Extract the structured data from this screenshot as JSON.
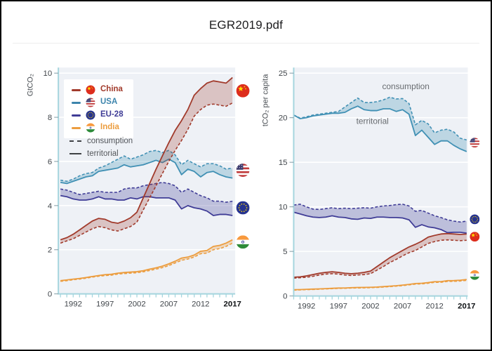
{
  "header": {
    "title": "EGR2019.pdf"
  },
  "colors": {
    "china": "#a13a2b",
    "usa": "#4090b4",
    "eu28": "#3f3c96",
    "india": "#ec9d3f",
    "axis": "#a5d5de",
    "plot_bg": "#eef1f6",
    "grid": "#ffffff",
    "tick_text": "#41464b",
    "bold_tick_text": "#101316",
    "annotation_text": "#686c70"
  },
  "legend": {
    "items": [
      {
        "id": "china",
        "label": "China",
        "color": "#a13a2b",
        "flag": "china"
      },
      {
        "id": "usa",
        "label": "USA",
        "color": "#3c84ac",
        "flag": "usa"
      },
      {
        "id": "eu28",
        "label": "EU-28",
        "color": "#3f3c96",
        "flag": "eu"
      },
      {
        "id": "india",
        "label": "India",
        "color": "#ec9d3f",
        "flag": "india"
      }
    ],
    "consumption_label": "consumption",
    "territorial_label": "territorial"
  },
  "chart_data": [
    {
      "type": "area",
      "title": "",
      "xlabel": "",
      "ylabel": "GtCO₂",
      "ylim": [
        0,
        10
      ],
      "yticks": [
        0,
        2,
        4,
        6,
        8,
        10
      ],
      "x_start": 1990,
      "x_end": 2017,
      "xtick_labels": [
        1992,
        1997,
        2002,
        2007,
        2012,
        2017
      ],
      "bold_xtick": 2017,
      "grid": true,
      "legend_position": "upper-left",
      "series": [
        {
          "country": "USA",
          "id": "usa",
          "color": "#4090b4",
          "fill_opacity": 0.28,
          "flag": "usa",
          "flag_value": 5.6,
          "territorial": [
            5.05,
            5.0,
            5.1,
            5.2,
            5.3,
            5.35,
            5.55,
            5.6,
            5.65,
            5.7,
            5.85,
            5.75,
            5.8,
            5.85,
            5.95,
            6.05,
            5.95,
            6.1,
            5.95,
            5.4,
            5.65,
            5.55,
            5.3,
            5.5,
            5.55,
            5.4,
            5.3,
            5.25
          ],
          "consumption": [
            5.15,
            5.1,
            5.2,
            5.35,
            5.45,
            5.5,
            5.7,
            5.8,
            5.95,
            6.1,
            6.25,
            6.1,
            6.2,
            6.3,
            6.45,
            6.5,
            6.4,
            6.5,
            6.3,
            5.85,
            6.05,
            5.9,
            5.75,
            5.9,
            5.9,
            5.8,
            5.65,
            5.7
          ]
        },
        {
          "country": "EU-28",
          "id": "eu28",
          "color": "#3f3c96",
          "fill_opacity": 0.28,
          "flag": "eu",
          "flag_value": 3.9,
          "territorial": [
            4.45,
            4.4,
            4.3,
            4.25,
            4.25,
            4.3,
            4.4,
            4.3,
            4.3,
            4.25,
            4.25,
            4.35,
            4.3,
            4.4,
            4.4,
            4.35,
            4.35,
            4.35,
            4.25,
            3.85,
            4.0,
            3.9,
            3.85,
            3.75,
            3.55,
            3.6,
            3.6,
            3.55
          ],
          "consumption": [
            4.75,
            4.7,
            4.6,
            4.5,
            4.55,
            4.6,
            4.65,
            4.6,
            4.6,
            4.6,
            4.75,
            4.8,
            4.8,
            4.9,
            4.95,
            5.0,
            5.05,
            5.0,
            4.9,
            4.6,
            4.75,
            4.6,
            4.45,
            4.35,
            4.2,
            4.2,
            4.15,
            4.2
          ]
        },
        {
          "country": "India",
          "id": "india",
          "color": "#ec9d3f",
          "fill_opacity": 0.3,
          "flag": "india",
          "flag_value": 2.35,
          "territorial": [
            0.6,
            0.63,
            0.67,
            0.7,
            0.74,
            0.79,
            0.83,
            0.87,
            0.89,
            0.94,
            0.97,
            0.99,
            1.01,
            1.05,
            1.12,
            1.18,
            1.26,
            1.36,
            1.48,
            1.62,
            1.67,
            1.76,
            1.93,
            1.97,
            2.15,
            2.2,
            2.3,
            2.45
          ],
          "consumption": [
            0.57,
            0.6,
            0.64,
            0.67,
            0.71,
            0.76,
            0.8,
            0.83,
            0.85,
            0.9,
            0.92,
            0.94,
            0.96,
            1.0,
            1.06,
            1.12,
            1.19,
            1.28,
            1.4,
            1.52,
            1.58,
            1.67,
            1.82,
            1.85,
            2.0,
            2.05,
            2.15,
            2.3
          ]
        },
        {
          "country": "China",
          "id": "china",
          "color": "#a13a2b",
          "fill_opacity": 0.25,
          "flag": "china",
          "flag_value": 9.2,
          "territorial": [
            2.45,
            2.55,
            2.7,
            2.9,
            3.1,
            3.3,
            3.42,
            3.38,
            3.25,
            3.2,
            3.3,
            3.45,
            3.7,
            4.35,
            5.0,
            5.65,
            6.25,
            6.85,
            7.4,
            7.85,
            8.35,
            9.0,
            9.3,
            9.55,
            9.65,
            9.6,
            9.55,
            9.8
          ],
          "consumption": [
            2.3,
            2.4,
            2.5,
            2.65,
            2.8,
            2.95,
            3.05,
            3.0,
            2.9,
            2.85,
            2.95,
            3.05,
            3.25,
            3.8,
            4.35,
            4.9,
            5.45,
            6.0,
            6.5,
            6.95,
            7.45,
            8.05,
            8.35,
            8.55,
            8.6,
            8.55,
            8.5,
            8.65
          ]
        }
      ],
      "annotations": []
    },
    {
      "type": "area",
      "title": "",
      "xlabel": "",
      "ylabel": "tCO₂ per capita",
      "ylim": [
        0,
        25
      ],
      "yticks": [
        0,
        5,
        10,
        15,
        20,
        25
      ],
      "x_start": 1990,
      "x_end": 2017,
      "xtick_labels": [
        1992,
        1997,
        2002,
        2007,
        2012,
        2017
      ],
      "bold_xtick": 2017,
      "grid": true,
      "series": [
        {
          "country": "USA",
          "id": "usa",
          "color": "#4090b4",
          "fill_opacity": 0.28,
          "flag": "usa",
          "flag_value": 17.2,
          "territorial": [
            20.3,
            19.9,
            20.0,
            20.2,
            20.3,
            20.4,
            20.5,
            20.5,
            20.6,
            21.0,
            21.3,
            20.9,
            20.8,
            20.8,
            21.0,
            21.0,
            20.7,
            20.9,
            20.4,
            18.0,
            18.6,
            17.8,
            17.0,
            17.4,
            17.4,
            16.9,
            16.5,
            16.2
          ],
          "consumption": [
            20.3,
            19.95,
            20.1,
            20.3,
            20.4,
            20.5,
            20.6,
            20.7,
            21.2,
            21.7,
            22.2,
            21.7,
            21.7,
            21.8,
            22.0,
            22.3,
            22.1,
            22.15,
            21.6,
            19.2,
            19.7,
            19.3,
            18.3,
            18.6,
            18.7,
            18.4,
            17.7,
            17.5
          ]
        },
        {
          "country": "EU-28",
          "id": "eu28",
          "color": "#3f3c96",
          "fill_opacity": 0.28,
          "flag": "eu",
          "flag_value": 8.6,
          "territorial": [
            9.4,
            9.2,
            9.0,
            8.85,
            8.8,
            8.85,
            9.0,
            8.85,
            8.8,
            8.65,
            8.6,
            8.75,
            8.7,
            8.85,
            8.85,
            8.8,
            8.8,
            8.75,
            8.55,
            7.7,
            8.0,
            7.75,
            7.65,
            7.45,
            7.1,
            7.15,
            7.15,
            7.05
          ],
          "consumption": [
            10.2,
            10.3,
            10.0,
            9.75,
            9.7,
            9.8,
            9.9,
            9.8,
            9.85,
            9.8,
            9.85,
            9.9,
            9.85,
            10.0,
            10.1,
            10.15,
            10.25,
            10.3,
            10.1,
            9.5,
            9.6,
            9.3,
            9.0,
            8.8,
            8.55,
            8.4,
            8.3,
            8.4
          ]
        },
        {
          "country": "India",
          "id": "india",
          "color": "#ec9d3f",
          "fill_opacity": 0.3,
          "flag": "india",
          "flag_value": 2.35,
          "territorial": [
            0.7,
            0.72,
            0.75,
            0.77,
            0.8,
            0.83,
            0.86,
            0.89,
            0.9,
            0.93,
            0.95,
            0.96,
            0.98,
            1.0,
            1.05,
            1.1,
            1.15,
            1.22,
            1.3,
            1.4,
            1.43,
            1.5,
            1.6,
            1.62,
            1.72,
            1.73,
            1.77,
            1.85
          ],
          "consumption": [
            0.66,
            0.68,
            0.71,
            0.73,
            0.76,
            0.79,
            0.82,
            0.85,
            0.86,
            0.89,
            0.9,
            0.91,
            0.93,
            0.95,
            1.0,
            1.05,
            1.1,
            1.16,
            1.24,
            1.33,
            1.36,
            1.43,
            1.52,
            1.54,
            1.63,
            1.64,
            1.68,
            1.75
          ]
        },
        {
          "country": "China",
          "id": "china",
          "color": "#a13a2b",
          "fill_opacity": 0.25,
          "flag": "china",
          "flag_value": 6.65,
          "territorial": [
            2.1,
            2.15,
            2.25,
            2.4,
            2.55,
            2.65,
            2.72,
            2.65,
            2.55,
            2.5,
            2.55,
            2.65,
            2.8,
            3.3,
            3.8,
            4.3,
            4.7,
            5.1,
            5.5,
            5.8,
            6.15,
            6.6,
            6.8,
            6.95,
            7.0,
            6.95,
            6.9,
            6.95
          ],
          "consumption": [
            2.0,
            2.05,
            2.1,
            2.2,
            2.35,
            2.45,
            2.5,
            2.45,
            2.35,
            2.3,
            2.35,
            2.4,
            2.5,
            2.9,
            3.3,
            3.75,
            4.1,
            4.5,
            4.85,
            5.1,
            5.5,
            5.9,
            6.1,
            6.25,
            6.3,
            6.25,
            6.2,
            6.25
          ]
        }
      ],
      "annotations": [
        {
          "text": "consumption",
          "year": 2007.5,
          "value": 23.2
        },
        {
          "text": "territorial",
          "year": 2002.3,
          "value": 19.3
        }
      ]
    }
  ]
}
